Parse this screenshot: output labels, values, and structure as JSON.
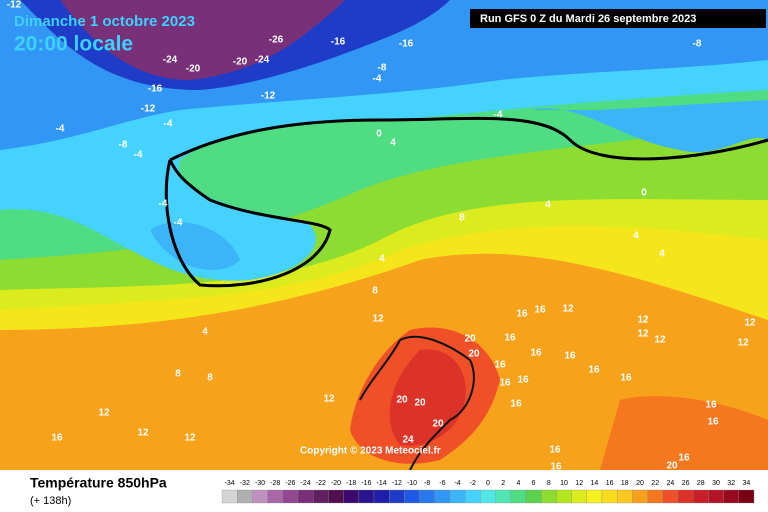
{
  "header": {
    "date": "Dimanche 1 octobre 2023",
    "time": "20:00 locale",
    "run": "Run GFS 0 Z du Mardi 26 septembre 2023"
  },
  "footer": {
    "title": "Température 850hPa",
    "subtitle": "(+ 138h)",
    "copyright": "Copyright © 2023 Meteociel.fr"
  },
  "colorbar": {
    "ticks": [
      -34,
      -32,
      -30,
      -28,
      -26,
      -24,
      -22,
      -20,
      -18,
      -16,
      -14,
      -12,
      -10,
      -8,
      -6,
      -4,
      -2,
      0,
      2,
      4,
      6,
      8,
      10,
      12,
      14,
      16,
      18,
      20,
      22,
      24,
      26,
      28,
      30,
      32,
      34
    ],
    "colors": [
      "#d4d4d4",
      "#b0b0b0",
      "#c090c0",
      "#a868a8",
      "#904890",
      "#783078",
      "#602060",
      "#501050",
      "#3c0a6e",
      "#28148c",
      "#1e1eaa",
      "#1e3cc8",
      "#1e5ae6",
      "#2878f0",
      "#3296f5",
      "#3cb4fa",
      "#46d2ff",
      "#50e6e6",
      "#50e6b4",
      "#50dc82",
      "#5ad250",
      "#8cdc32",
      "#b4e61e",
      "#dceb1e",
      "#f5f01e",
      "#fadc1e",
      "#fac81e",
      "#faa01e",
      "#f5781e",
      "#f05028",
      "#dc3228",
      "#c81e28",
      "#b41428",
      "#960a1e",
      "#780014"
    ]
  },
  "contour_labels": [
    -12,
    -26,
    -16,
    -16,
    -8,
    -24,
    -20,
    -20,
    -24,
    -8,
    -4,
    -16,
    -12,
    -12,
    -4,
    -4,
    -4,
    -8,
    -4,
    0,
    4,
    0,
    -4,
    -4,
    4,
    8,
    4,
    4,
    4,
    8,
    12,
    16,
    12,
    16,
    4,
    20,
    16,
    12,
    12,
    12,
    12,
    12,
    20,
    16,
    16,
    8,
    8,
    16,
    16,
    16,
    16,
    16,
    20,
    20,
    12,
    16,
    12,
    16,
    16,
    20,
    12,
    12,
    16,
    24,
    16,
    16,
    16,
    20
  ]
}
